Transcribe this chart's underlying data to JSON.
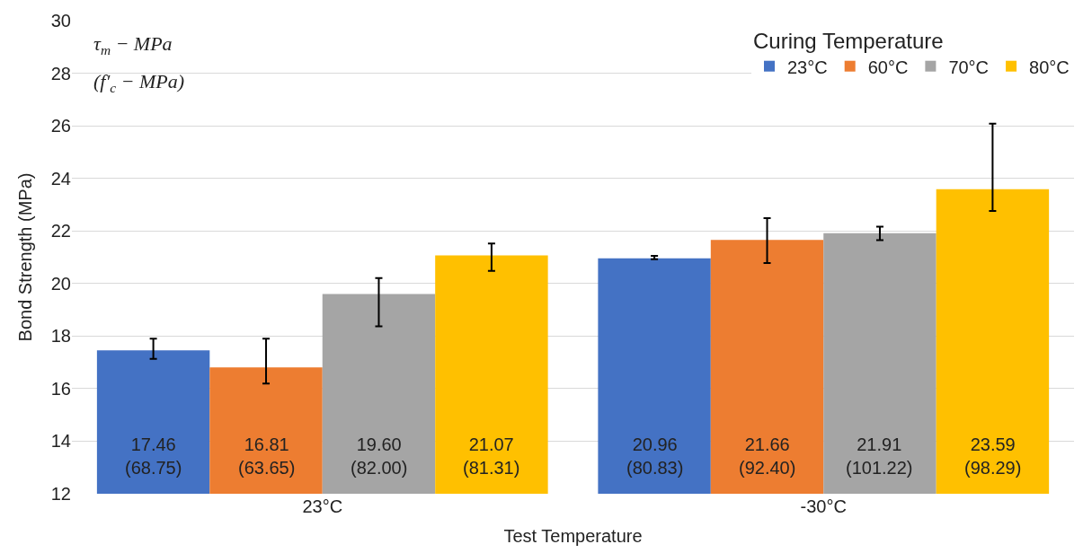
{
  "chart_data": {
    "type": "bar",
    "xlabel": "Test Temperature",
    "ylabel": "Bond Strength (MPa)",
    "legend_title": "Curing Temperature",
    "categories": [
      "23°C",
      "-30°C"
    ],
    "series": [
      {
        "name": "23°C",
        "color": "#4472c4",
        "values": [
          17.46,
          20.96
        ],
        "errors": [
          [
            17.13,
            17.9
          ],
          [
            20.92,
            21.05
          ]
        ],
        "value_labels": [
          "17.46\n(68.75)",
          "20.96\n(80.83)"
        ]
      },
      {
        "name": "60°C",
        "color": "#ed7d31",
        "values": [
          16.81,
          21.66
        ],
        "errors": [
          [
            16.19,
            17.9
          ],
          [
            20.78,
            22.49
          ]
        ],
        "value_labels": [
          "16.81\n(63.65)",
          "21.66\n(92.40)"
        ]
      },
      {
        "name": "70°C",
        "color": "#a5a5a5",
        "values": [
          19.6,
          21.91
        ],
        "errors": [
          [
            18.37,
            20.21
          ],
          [
            21.65,
            22.16
          ]
        ],
        "value_labels": [
          "19.60\n(82.00)",
          "21.91\n(101.22)"
        ]
      },
      {
        "name": "80°C",
        "color": "#ffc000",
        "values": [
          21.07,
          23.59
        ],
        "errors": [
          [
            20.48,
            21.52
          ],
          [
            22.76,
            26.08
          ]
        ],
        "value_labels": [
          "21.07\n(81.31)",
          "23.59\n(98.29)"
        ]
      }
    ],
    "ylim": [
      12,
      30
    ],
    "yticks": [
      12,
      14,
      16,
      18,
      20,
      22,
      24,
      26,
      28,
      30
    ],
    "grid": "y",
    "legend": "top right",
    "annotations": [
      "τ$_{m}$ − MPa",
      "(f′$_{c}$ − MPa)"
    ]
  }
}
